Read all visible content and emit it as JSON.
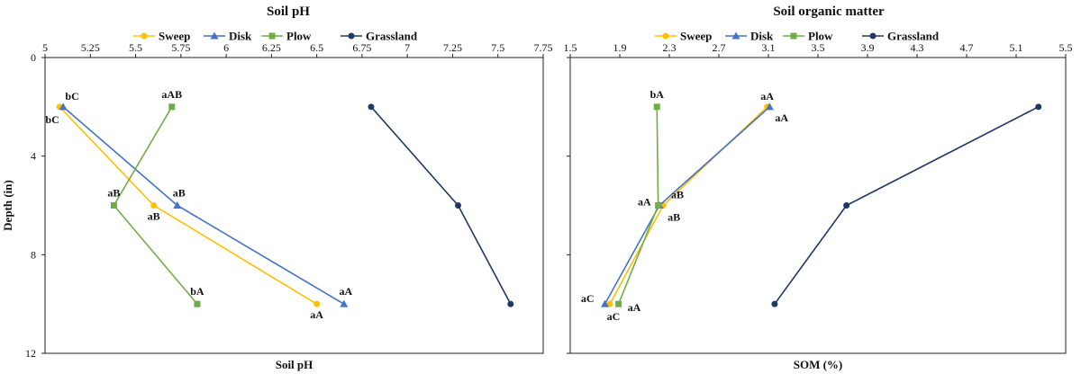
{
  "chart_data": [
    {
      "type": "line",
      "title": "Soil pH",
      "xlabel": "Soil pH",
      "ylabel": "Depth (in)",
      "xlim": [
        5,
        7.75
      ],
      "ylim": [
        0,
        12
      ],
      "y_inverted": true,
      "x_axis_position": "top",
      "x_ticks": [
        "5",
        "5.25",
        "5.5",
        "5.75",
        "6",
        "6.25",
        "6.5",
        "6.75",
        "7",
        "7.25",
        "7.5",
        "7.75"
      ],
      "y_ticks": [
        "0",
        "4",
        "8",
        "12"
      ],
      "grid": false,
      "legend_position": "top",
      "series": [
        {
          "name": "Sweep",
          "color": "#FFC000",
          "marker": "circle",
          "points": [
            {
              "x": 5.08,
              "y": 2,
              "label": "bC"
            },
            {
              "x": 5.6,
              "y": 6,
              "label": "aB"
            },
            {
              "x": 6.5,
              "y": 10,
              "label": "aA"
            }
          ]
        },
        {
          "name": "Disk",
          "color": "#4472C4",
          "marker": "triangle",
          "points": [
            {
              "x": 5.1,
              "y": 2,
              "label": "bC"
            },
            {
              "x": 5.73,
              "y": 6,
              "label": "aB"
            },
            {
              "x": 6.65,
              "y": 10,
              "label": "aA"
            }
          ]
        },
        {
          "name": "Plow",
          "color": "#70AD47",
          "marker": "square",
          "points": [
            {
              "x": 5.7,
              "y": 2,
              "label": "aAB"
            },
            {
              "x": 5.38,
              "y": 6,
              "label": "aB"
            },
            {
              "x": 5.84,
              "y": 10,
              "label": "bA"
            }
          ]
        },
        {
          "name": "Grassland",
          "color": "#1F3864",
          "marker": "circle",
          "points": [
            {
              "x": 6.8,
              "y": 2
            },
            {
              "x": 7.28,
              "y": 6
            },
            {
              "x": 7.57,
              "y": 10
            }
          ]
        }
      ]
    },
    {
      "type": "line",
      "title": "Soil organic matter",
      "xlabel": "SOM (%)",
      "ylabel": "",
      "xlim": [
        1.5,
        5.5
      ],
      "ylim": [
        0,
        12
      ],
      "y_inverted": true,
      "x_axis_position": "top",
      "x_ticks": [
        "1.5",
        "1.9",
        "2.3",
        "2.7",
        "3.1",
        "3.5",
        "3.9",
        "4.3",
        "4.7",
        "5.1",
        "5.5"
      ],
      "y_ticks": [],
      "grid": false,
      "legend_position": "top",
      "series": [
        {
          "name": "Sweep",
          "color": "#FFC000",
          "marker": "circle",
          "points": [
            {
              "x": 3.09,
              "y": 2,
              "label": "aA"
            },
            {
              "x": 2.25,
              "y": 6,
              "label": "aB"
            },
            {
              "x": 1.82,
              "y": 10,
              "label": "aC"
            }
          ]
        },
        {
          "name": "Disk",
          "color": "#4472C4",
          "marker": "triangle",
          "points": [
            {
              "x": 3.11,
              "y": 2,
              "label": "aA"
            },
            {
              "x": 2.22,
              "y": 6,
              "label": "aB"
            },
            {
              "x": 1.78,
              "y": 10,
              "label": "aC"
            }
          ]
        },
        {
          "name": "Plow",
          "color": "#70AD47",
          "marker": "square",
          "points": [
            {
              "x": 2.2,
              "y": 2,
              "label": "bA"
            },
            {
              "x": 2.21,
              "y": 6,
              "label": "aA"
            },
            {
              "x": 1.89,
              "y": 10,
              "label": "aA"
            }
          ]
        },
        {
          "name": "Grassland",
          "color": "#1F3864",
          "marker": "circle",
          "points": [
            {
              "x": 5.28,
              "y": 2
            },
            {
              "x": 3.73,
              "y": 6
            },
            {
              "x": 3.15,
              "y": 10
            }
          ]
        }
      ]
    }
  ]
}
